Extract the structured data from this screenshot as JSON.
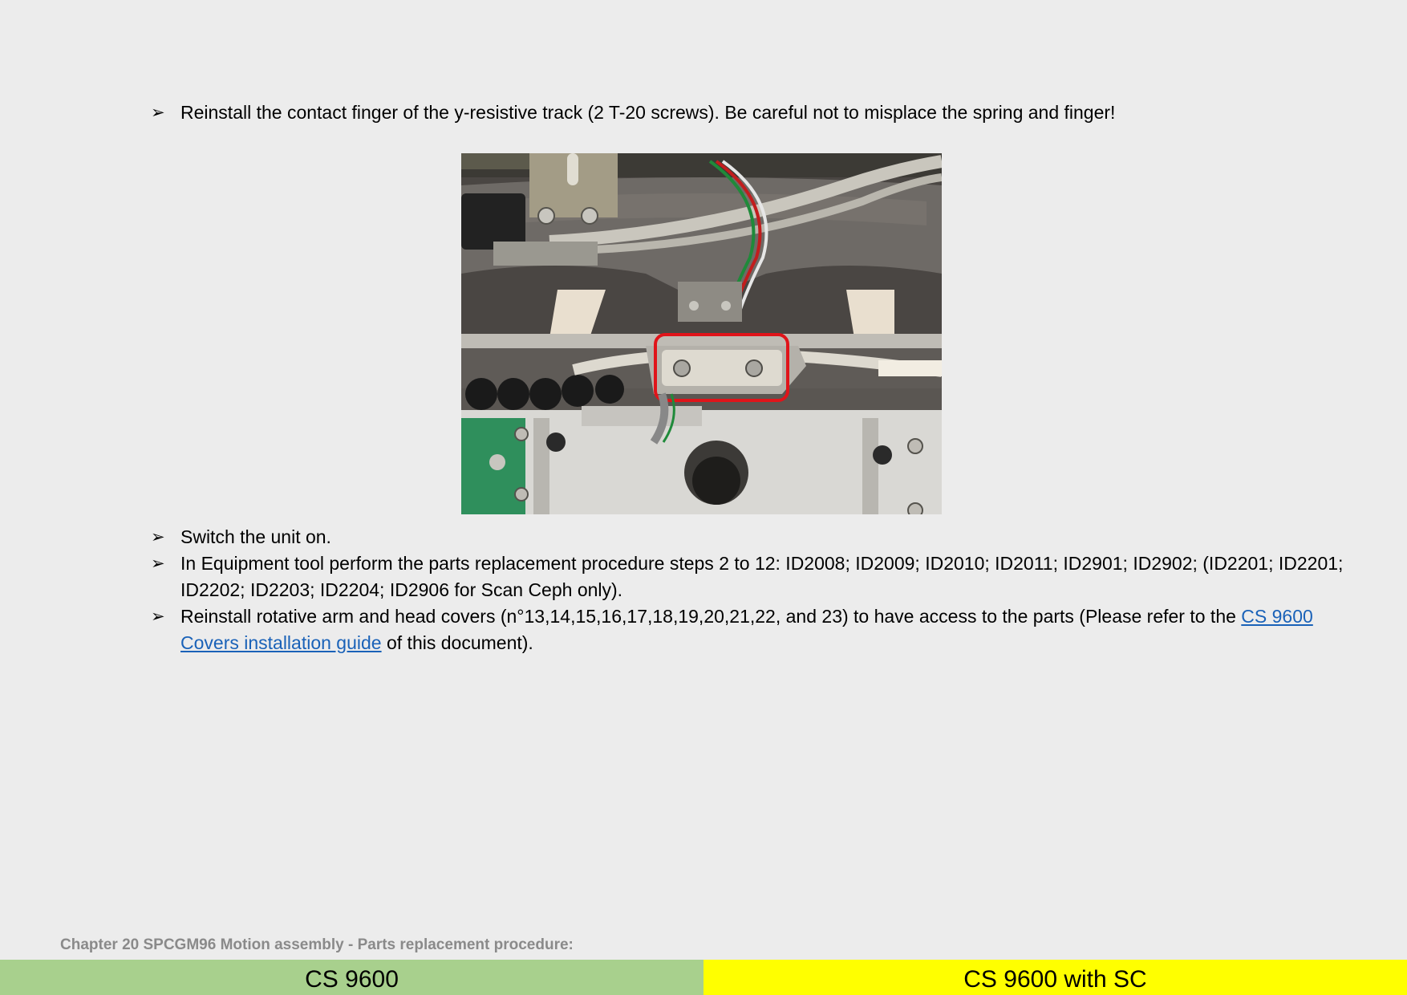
{
  "steps_before": [
    {
      "text": "Reinstall the contact finger of the y-resistive track (2 T-20 screws). Be careful not to misplace the spring and finger!"
    }
  ],
  "photo": {
    "description_icon": "photo-motion-assembly-contact-finger",
    "highlight_color": "#e0141a"
  },
  "steps_after": [
    {
      "text": "Switch the unit on."
    },
    {
      "text": "In Equipment tool perform the parts replacement procedure steps 2 to 12: ID2008; ID2009; ID2010; ID2011; ID2901; ID2902; (ID2201; ID2201; ID2202; ID2203; ID2204; ID2906 for Scan Ceph only)."
    },
    {
      "text_before": "Reinstall rotative arm and head covers (n°13,14,15,16,17,18,19,20,21,22, and 23) to have access to the parts (Please refer to the ",
      "link": "CS 9600 Covers installation guide",
      "text_after": " of this document)."
    }
  ],
  "bullet_glyph": "➢",
  "chapter_heading": "Chapter 20 SPCGM96 Motion assembly - Parts replacement procedure:",
  "footer": {
    "left": "CS 9600",
    "right": "CS 9600 with SC",
    "left_color": "#a8d08d",
    "right_color": "#ffff00"
  }
}
